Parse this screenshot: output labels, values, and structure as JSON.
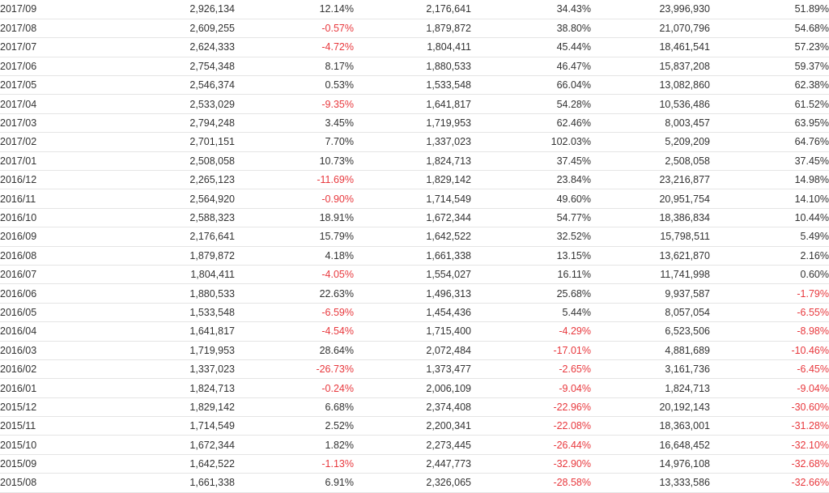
{
  "colors": {
    "text": "#333333",
    "negative": "#e8383d",
    "row_border": "#e5e5e5"
  },
  "rows": [
    {
      "month": "2017/09",
      "v1": "2,926,134",
      "p1": "12.14%",
      "v2": "2,176,641",
      "p2": "34.43%",
      "v3": "23,996,930",
      "p3": "51.89%"
    },
    {
      "month": "2017/08",
      "v1": "2,609,255",
      "p1": "-0.57%",
      "v2": "1,879,872",
      "p2": "38.80%",
      "v3": "21,070,796",
      "p3": "54.68%"
    },
    {
      "month": "2017/07",
      "v1": "2,624,333",
      "p1": "-4.72%",
      "v2": "1,804,411",
      "p2": "45.44%",
      "v3": "18,461,541",
      "p3": "57.23%"
    },
    {
      "month": "2017/06",
      "v1": "2,754,348",
      "p1": "8.17%",
      "v2": "1,880,533",
      "p2": "46.47%",
      "v3": "15,837,208",
      "p3": "59.37%"
    },
    {
      "month": "2017/05",
      "v1": "2,546,374",
      "p1": "0.53%",
      "v2": "1,533,548",
      "p2": "66.04%",
      "v3": "13,082,860",
      "p3": "62.38%"
    },
    {
      "month": "2017/04",
      "v1": "2,533,029",
      "p1": "-9.35%",
      "v2": "1,641,817",
      "p2": "54.28%",
      "v3": "10,536,486",
      "p3": "61.52%"
    },
    {
      "month": "2017/03",
      "v1": "2,794,248",
      "p1": "3.45%",
      "v2": "1,719,953",
      "p2": "62.46%",
      "v3": "8,003,457",
      "p3": "63.95%"
    },
    {
      "month": "2017/02",
      "v1": "2,701,151",
      "p1": "7.70%",
      "v2": "1,337,023",
      "p2": "102.03%",
      "v3": "5,209,209",
      "p3": "64.76%"
    },
    {
      "month": "2017/01",
      "v1": "2,508,058",
      "p1": "10.73%",
      "v2": "1,824,713",
      "p2": "37.45%",
      "v3": "2,508,058",
      "p3": "37.45%"
    },
    {
      "month": "2016/12",
      "v1": "2,265,123",
      "p1": "-11.69%",
      "v2": "1,829,142",
      "p2": "23.84%",
      "v3": "23,216,877",
      "p3": "14.98%"
    },
    {
      "month": "2016/11",
      "v1": "2,564,920",
      "p1": "-0.90%",
      "v2": "1,714,549",
      "p2": "49.60%",
      "v3": "20,951,754",
      "p3": "14.10%"
    },
    {
      "month": "2016/10",
      "v1": "2,588,323",
      "p1": "18.91%",
      "v2": "1,672,344",
      "p2": "54.77%",
      "v3": "18,386,834",
      "p3": "10.44%"
    },
    {
      "month": "2016/09",
      "v1": "2,176,641",
      "p1": "15.79%",
      "v2": "1,642,522",
      "p2": "32.52%",
      "v3": "15,798,511",
      "p3": "5.49%"
    },
    {
      "month": "2016/08",
      "v1": "1,879,872",
      "p1": "4.18%",
      "v2": "1,661,338",
      "p2": "13.15%",
      "v3": "13,621,870",
      "p3": "2.16%"
    },
    {
      "month": "2016/07",
      "v1": "1,804,411",
      "p1": "-4.05%",
      "v2": "1,554,027",
      "p2": "16.11%",
      "v3": "11,741,998",
      "p3": "0.60%"
    },
    {
      "month": "2016/06",
      "v1": "1,880,533",
      "p1": "22.63%",
      "v2": "1,496,313",
      "p2": "25.68%",
      "v3": "9,937,587",
      "p3": "-1.79%"
    },
    {
      "month": "2016/05",
      "v1": "1,533,548",
      "p1": "-6.59%",
      "v2": "1,454,436",
      "p2": "5.44%",
      "v3": "8,057,054",
      "p3": "-6.55%"
    },
    {
      "month": "2016/04",
      "v1": "1,641,817",
      "p1": "-4.54%",
      "v2": "1,715,400",
      "p2": "-4.29%",
      "v3": "6,523,506",
      "p3": "-8.98%"
    },
    {
      "month": "2016/03",
      "v1": "1,719,953",
      "p1": "28.64%",
      "v2": "2,072,484",
      "p2": "-17.01%",
      "v3": "4,881,689",
      "p3": "-10.46%"
    },
    {
      "month": "2016/02",
      "v1": "1,337,023",
      "p1": "-26.73%",
      "v2": "1,373,477",
      "p2": "-2.65%",
      "v3": "3,161,736",
      "p3": "-6.45%"
    },
    {
      "month": "2016/01",
      "v1": "1,824,713",
      "p1": "-0.24%",
      "v2": "2,006,109",
      "p2": "-9.04%",
      "v3": "1,824,713",
      "p3": "-9.04%"
    },
    {
      "month": "2015/12",
      "v1": "1,829,142",
      "p1": "6.68%",
      "v2": "2,374,408",
      "p2": "-22.96%",
      "v3": "20,192,143",
      "p3": "-30.60%"
    },
    {
      "month": "2015/11",
      "v1": "1,714,549",
      "p1": "2.52%",
      "v2": "2,200,341",
      "p2": "-22.08%",
      "v3": "18,363,001",
      "p3": "-31.28%"
    },
    {
      "month": "2015/10",
      "v1": "1,672,344",
      "p1": "1.82%",
      "v2": "2,273,445",
      "p2": "-26.44%",
      "v3": "16,648,452",
      "p3": "-32.10%"
    },
    {
      "month": "2015/09",
      "v1": "1,642,522",
      "p1": "-1.13%",
      "v2": "2,447,773",
      "p2": "-32.90%",
      "v3": "14,976,108",
      "p3": "-32.68%"
    },
    {
      "month": "2015/08",
      "v1": "1,661,338",
      "p1": "6.91%",
      "v2": "2,326,065",
      "p2": "-28.58%",
      "v3": "13,333,586",
      "p3": "-32.66%"
    }
  ]
}
